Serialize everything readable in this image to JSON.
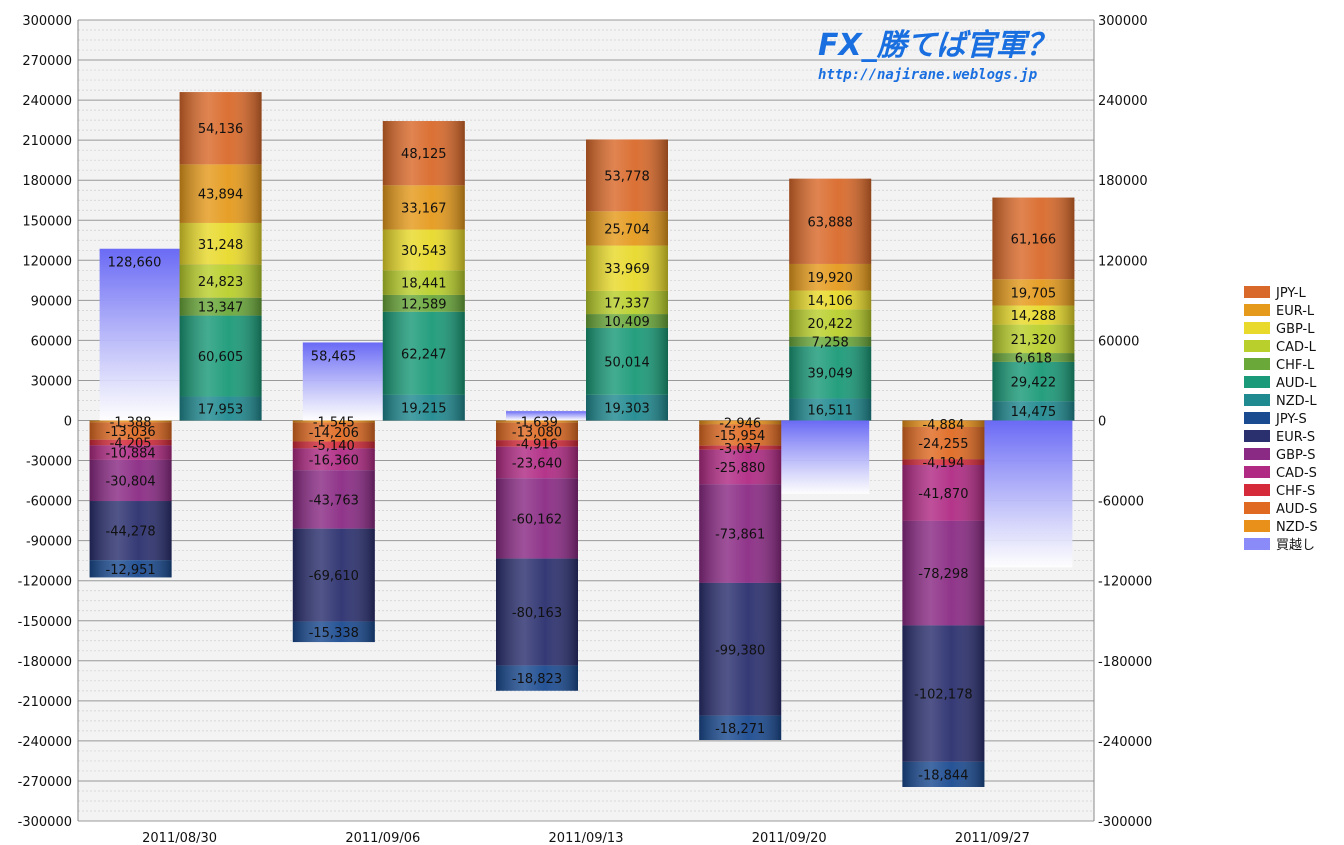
{
  "watermark": {
    "title": "FX_勝てば官軍？",
    "url": "http://najirane.weblogs.jp"
  },
  "chart_data": {
    "type": "bar",
    "stacked": true,
    "categories": [
      "2011/08/30",
      "2011/09/06",
      "2011/09/13",
      "2011/09/20",
      "2011/09/27"
    ],
    "ylim": [
      -300000,
      300000
    ],
    "yticks": [
      300000,
      270000,
      240000,
      210000,
      180000,
      150000,
      120000,
      90000,
      60000,
      30000,
      0,
      -30000,
      -60000,
      -90000,
      -120000,
      -150000,
      -180000,
      -210000,
      -240000,
      -270000,
      -300000
    ],
    "y2ticks": [
      300000,
      240000,
      180000,
      120000,
      60000,
      0,
      -60000,
      -120000,
      -180000,
      -240000,
      -300000
    ],
    "grid": true,
    "legend_position": "right",
    "long_series": [
      {
        "name": "NZD-L",
        "color": "#1f8a90",
        "values": [
          17953,
          19215,
          19303,
          16511,
          14475
        ],
        "labels": [
          "17,953",
          "19,215",
          "19,303",
          "16,511",
          "14,475"
        ]
      },
      {
        "name": "AUD-L",
        "color": "#1a9a78",
        "values": [
          60605,
          62247,
          50014,
          39049,
          29422
        ],
        "labels": [
          "60,605",
          "62,247",
          "50,014",
          "39,049",
          "29,422"
        ]
      },
      {
        "name": "CHF-L",
        "color": "#6aa83a",
        "values": [
          13347,
          12589,
          10409,
          7258,
          6618
        ],
        "labels": [
          "13,347",
          "12,589",
          "10,409",
          "7,258",
          "6,618"
        ]
      },
      {
        "name": "CAD-L",
        "color": "#b9cf2b",
        "values": [
          24823,
          18441,
          17337,
          20422,
          21320
        ],
        "labels": [
          "24,823",
          "18,441",
          "17,337",
          "20,422",
          "21,320"
        ]
      },
      {
        "name": "GBP-L",
        "color": "#e8d92a",
        "values": [
          31248,
          30543,
          33969,
          14106,
          14288
        ],
        "labels": [
          "31,248",
          "30,543",
          "33,969",
          "14,106",
          "14,288"
        ]
      },
      {
        "name": "EUR-L",
        "color": "#e59a1c",
        "values": [
          43894,
          33167,
          25704,
          19920,
          19705
        ],
        "labels": [
          "43,894",
          "33,167",
          "25,704",
          "19,920",
          "19,705"
        ]
      },
      {
        "name": "JPY-L",
        "color": "#d9692a",
        "values": [
          54136,
          48125,
          53778,
          63888,
          61166
        ],
        "labels": [
          "54,136",
          "48,125",
          "53,778",
          "63,888",
          "61,166"
        ]
      }
    ],
    "short_series": [
      {
        "name": "NZD-S",
        "color": "#e8901a",
        "values": [
          -1388,
          -1545,
          -1639,
          -2946,
          -4884
        ],
        "labels": [
          "-1,388",
          "-1,545",
          "-1,639",
          "-2,946",
          "-4,884"
        ]
      },
      {
        "name": "AUD-S",
        "color": "#e06a22",
        "values": [
          -13036,
          -14206,
          -13080,
          -15954,
          -24255
        ],
        "labels": [
          "-13,036",
          "-14,206",
          "-13,080",
          "-15,954",
          "-24,255"
        ]
      },
      {
        "name": "CHF-S",
        "color": "#d42a3a",
        "values": [
          -4205,
          -5140,
          -4916,
          -3037,
          -4194
        ],
        "labels": [
          "-4,205",
          "-5,140",
          "-4,916",
          "-3,037",
          "-4,194"
        ]
      },
      {
        "name": "CAD-S",
        "color": "#b02a84",
        "values": [
          -10884,
          -16360,
          -23640,
          -25880,
          -41870
        ],
        "labels": [
          "-10,884",
          "-16,360",
          "-23,640",
          "-25,880",
          "-41,870"
        ]
      },
      {
        "name": "GBP-S",
        "color": "#8a2a84",
        "values": [
          -30804,
          -43763,
          -60162,
          -73861,
          -78298
        ],
        "labels": [
          "-30,804",
          "-43,763",
          "-60,162",
          "-73,861",
          "-78,298"
        ]
      },
      {
        "name": "EUR-S",
        "color": "#2a2f6e",
        "values": [
          -44278,
          -69610,
          -80163,
          -99380,
          -102178
        ],
        "labels": [
          "-44,278",
          "-69,610",
          "-80,163",
          "-99,380",
          "-102,178"
        ]
      },
      {
        "name": "JPY-S",
        "color": "#1a4a90",
        "values": [
          -12951,
          -15338,
          -18823,
          -18271,
          -18844
        ],
        "labels": [
          "-12,951",
          "-15,338",
          "-18,823",
          "-18,271",
          "-18,844"
        ]
      }
    ],
    "net_series": {
      "name": "買越し",
      "color": "#6a6af5",
      "values": [
        128660,
        58465,
        7000,
        -55000,
        -110000
      ],
      "labels": [
        "128,660",
        "58,465",
        "",
        "",
        ""
      ]
    },
    "legend": [
      "JPY-L",
      "EUR-L",
      "GBP-L",
      "CAD-L",
      "CHF-L",
      "AUD-L",
      "NZD-L",
      "JPY-S",
      "EUR-S",
      "GBP-S",
      "CAD-S",
      "CHF-S",
      "AUD-S",
      "NZD-S",
      "買越し"
    ],
    "legend_colors": [
      "#d9692a",
      "#e59a1c",
      "#e8d92a",
      "#b9cf2b",
      "#6aa83a",
      "#1a9a78",
      "#1f8a90",
      "#1a4a90",
      "#2a2f6e",
      "#8a2a84",
      "#b02a84",
      "#d42a3a",
      "#e06a22",
      "#e8901a",
      "#8a8af8"
    ]
  }
}
